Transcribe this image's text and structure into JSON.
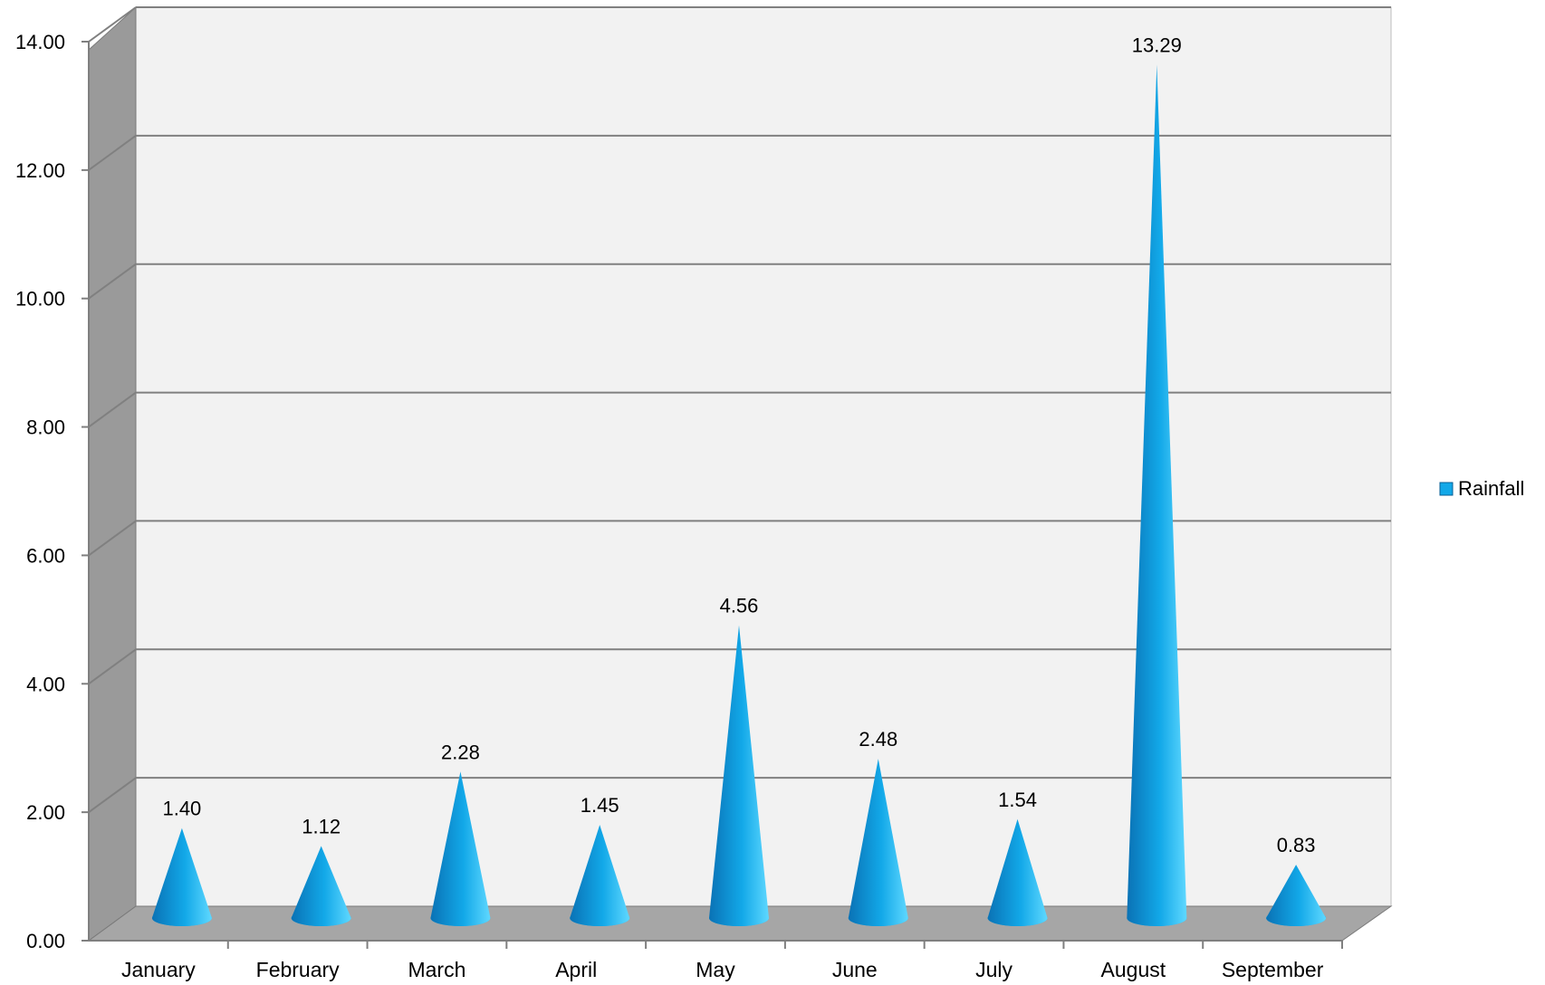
{
  "chart_data": {
    "type": "bar",
    "style": "3d-cone",
    "categories": [
      "January",
      "February",
      "March",
      "April",
      "May",
      "June",
      "July",
      "August",
      "September"
    ],
    "series": [
      {
        "name": "Rainfall",
        "values": [
          1.4,
          1.12,
          2.28,
          1.45,
          4.56,
          2.48,
          1.54,
          13.29,
          0.83
        ],
        "data_labels": [
          "1.40",
          "1.12",
          "2.28",
          "1.45",
          "4.56",
          "2.48",
          "1.54",
          "13.29",
          "0.83"
        ]
      }
    ],
    "y_ticks": [
      "0.00",
      "2.00",
      "4.00",
      "6.00",
      "8.00",
      "10.00",
      "12.00",
      "14.00"
    ],
    "ylim": [
      0,
      14
    ],
    "grid": true,
    "legend": "right",
    "colors": {
      "cone_dark": "#0a72b5",
      "cone_mid": "#12a8e8",
      "cone_light": "#5fd8ff",
      "wall_back": "#f2f2f2",
      "wall_side": "#9a9a9a",
      "floor": "#a6a6a6",
      "grid_line": "#808080"
    }
  }
}
